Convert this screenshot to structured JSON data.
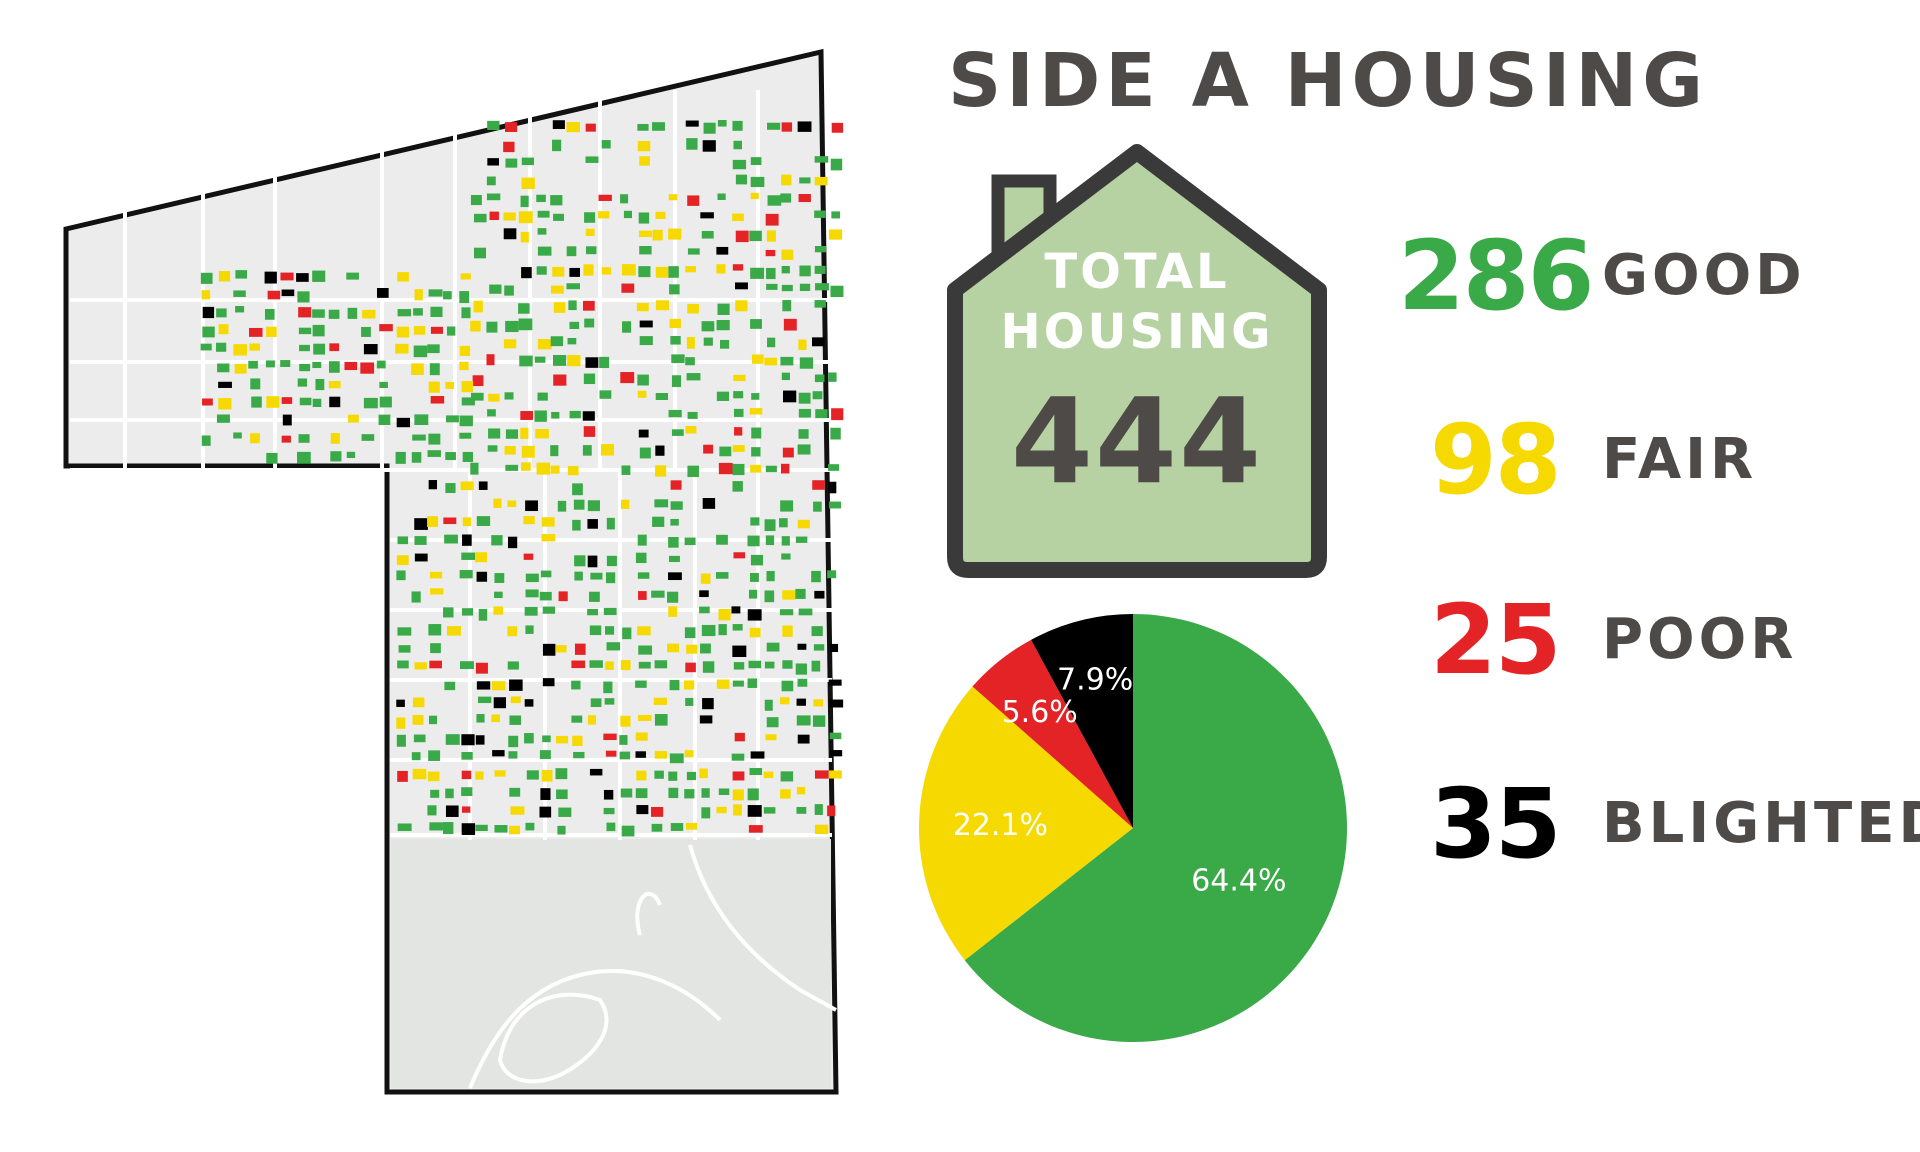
{
  "title": "SIDE A HOUSING",
  "total": {
    "label_line1": "TOTAL",
    "label_line2": "HOUSING",
    "value": "444"
  },
  "colors": {
    "good": "#3aa948",
    "fair": "#f6d900",
    "poor": "#e32326",
    "blighted": "#000000",
    "house_fill": "#b7d2a2",
    "text": "#4d4a47"
  },
  "stats": [
    {
      "value": "286",
      "label": "GOOD",
      "color": "#3aa948"
    },
    {
      "value": "98",
      "label": "FAIR",
      "color": "#f6d900"
    },
    {
      "value": "25",
      "label": "POOR",
      "color": "#e32326"
    },
    {
      "value": "35",
      "label": "BLIGHTED",
      "color": "#000000"
    }
  ],
  "chart_data": {
    "type": "pie",
    "slices": [
      {
        "category": "GOOD",
        "value": 64.4,
        "label": "64.4%",
        "color": "#3aa948"
      },
      {
        "category": "FAIR",
        "value": 22.1,
        "label": "22.1%",
        "color": "#f6d900"
      },
      {
        "category": "POOR",
        "value": 5.6,
        "label": "5.6%",
        "color": "#e32326"
      },
      {
        "category": "BLIGHTED",
        "value": 7.9,
        "label": "7.9%",
        "color": "#000000"
      }
    ],
    "start": "12 o'clock",
    "direction": "clockwise"
  },
  "map": {
    "icon": "neighborhood-parcel-map"
  }
}
